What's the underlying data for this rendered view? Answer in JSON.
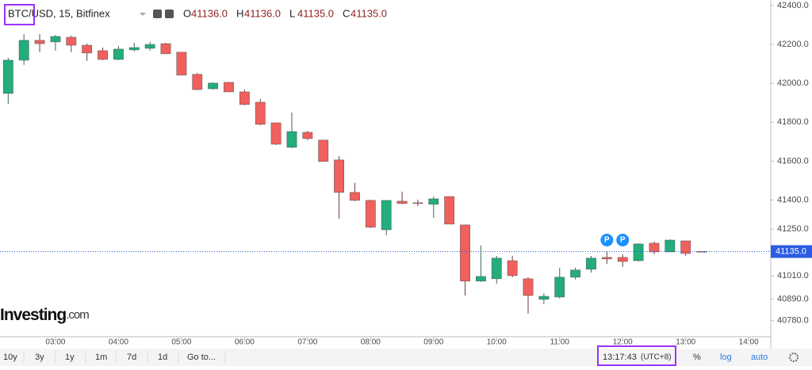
{
  "chart_data": {
    "type": "candlestick",
    "title": "BTC/USD, 15, Bitfinex",
    "header_ohlc": {
      "labels": [
        "O",
        "H",
        "L",
        "C"
      ],
      "values": [
        41136,
        41136,
        41135,
        41135
      ],
      "value_labels": [
        "41136.0",
        "41136.0",
        "41135.0",
        "41135.0"
      ]
    },
    "up_color": "#22ad7a",
    "down_color": "#f0605d",
    "x": [
      2.25,
      2.5,
      2.75,
      3,
      3.25,
      3.5,
      3.75,
      4,
      4.25,
      4.5,
      4.75,
      5,
      5.25,
      5.5,
      5.75,
      6,
      6.25,
      6.5,
      6.75,
      7,
      7.25,
      7.5,
      7.75,
      8,
      8.25,
      8.5,
      8.75,
      9,
      9.25,
      9.5,
      9.75,
      10,
      10.25,
      10.5,
      10.75,
      11,
      11.25,
      11.5,
      11.75,
      12,
      12.25,
      12.5,
      12.75,
      13,
      13.25
    ],
    "open": [
      41948,
      42119,
      42221,
      42213,
      42237,
      42196,
      42168,
      42123,
      42172,
      42180,
      42204,
      42160,
      42046,
      41972,
      42005,
      41956,
      41903,
      41797,
      41671,
      41748,
      41708,
      41606,
      41439,
      41398,
      41247,
      41394,
      41386,
      41378,
      41418,
      41272,
      40983,
      40995,
      41088,
      40995,
      40889,
      40901,
      41003,
      41044,
      41105,
      41105,
      41088,
      41178,
      41133,
      41190,
      41136
    ],
    "high": [
      42131,
      42253,
      42253,
      42249,
      42245,
      42204,
      42184,
      42192,
      42209,
      42213,
      42209,
      42160,
      42054,
      42005,
      42005,
      41968,
      41919,
      41797,
      41850,
      41756,
      41708,
      41626,
      41488,
      41402,
      41398,
      41443,
      41402,
      41418,
      41418,
      41272,
      41166,
      41113,
      41113,
      41003,
      40921,
      41052,
      41052,
      41113,
      41137,
      41121,
      41178,
      41186,
      41198,
      41190,
      41136
    ],
    "low": [
      41895,
      42095,
      42160,
      42168,
      42160,
      42115,
      42119,
      42119,
      42164,
      42168,
      42152,
      42042,
      41964,
      41968,
      41956,
      41887,
      41785,
      41683,
      41667,
      41708,
      41598,
      41304,
      41394,
      41256,
      41219,
      41378,
      41369,
      41308,
      41276,
      40909,
      40979,
      40970,
      41003,
      40816,
      40864,
      40893,
      40991,
      41027,
      41072,
      41056,
      41084,
      41121,
      41133,
      41113,
      41135
    ],
    "close": [
      42119,
      42221,
      42204,
      42241,
      42196,
      42156,
      42123,
      42176,
      42184,
      42200,
      42152,
      42042,
      41968,
      42001,
      41956,
      41891,
      41789,
      41687,
      41752,
      41716,
      41598,
      41439,
      41398,
      41260,
      41398,
      41382,
      41382,
      41406,
      41276,
      40983,
      41007,
      41101,
      41011,
      40909,
      40905,
      41003,
      41040,
      41101,
      41097,
      41084,
      41174,
      41133,
      41194,
      41125,
      41135
    ],
    "xlim": [
      2.12,
      14.35
    ],
    "xticks": [
      {
        "value": 3,
        "label": "03:00"
      },
      {
        "value": 4,
        "label": "04:00"
      },
      {
        "value": 5,
        "label": "05:00"
      },
      {
        "value": 6,
        "label": "06:00"
      },
      {
        "value": 7,
        "label": "07:00"
      },
      {
        "value": 8,
        "label": "08:00"
      },
      {
        "value": 9,
        "label": "09:00"
      },
      {
        "value": 10,
        "label": "10:00"
      },
      {
        "value": 11,
        "label": "11:00"
      },
      {
        "value": 12,
        "label": "12:00"
      },
      {
        "value": 13,
        "label": "13:00"
      },
      {
        "value": 14,
        "label": "14:00"
      }
    ],
    "ylim": [
      40697,
      42428.5
    ],
    "yticks": [
      {
        "value": 42400,
        "label": "42400.0"
      },
      {
        "value": 42200,
        "label": "42200.0"
      },
      {
        "value": 42000,
        "label": "42000.0"
      },
      {
        "value": 41800,
        "label": "41800.0"
      },
      {
        "value": 41600,
        "label": "41600.0"
      },
      {
        "value": 41400,
        "label": "41400.0"
      },
      {
        "value": 41250,
        "label": "41250.0"
      },
      {
        "value": 41010,
        "label": "41010.0"
      },
      {
        "value": 40890,
        "label": "40890.0"
      },
      {
        "value": 40780,
        "label": "40780.0"
      }
    ],
    "last_price": {
      "value": 41135,
      "label": "41135.0",
      "color": "#2d5be3"
    },
    "markers": [
      {
        "x": 11.75,
        "label": "P"
      },
      {
        "x": 12,
        "label": "P"
      }
    ],
    "marker_color": "#1e90ff"
  },
  "logo": {
    "name": "Investing",
    "suffix": ".com"
  },
  "toolbar": {
    "ranges": [
      "10y",
      "3y",
      "1y",
      "1m",
      "7d",
      "1d",
      "Go to..."
    ],
    "clock": "13:17:43",
    "timezone": "(UTC+8)",
    "options": [
      "%",
      "log",
      "auto"
    ]
  }
}
